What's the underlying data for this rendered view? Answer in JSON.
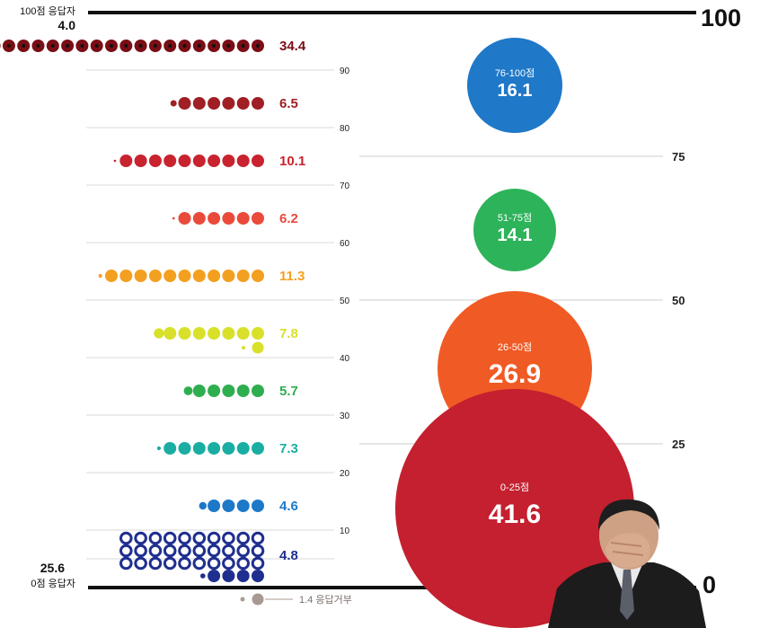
{
  "chart_data": {
    "type": "dot-bin-bubble",
    "bins": [
      {
        "value": 4.8,
        "label": "4.8",
        "color": "#1f2f8f"
      },
      {
        "value": 4.6,
        "label": "4.6",
        "color": "#1d78c8"
      },
      {
        "value": 7.3,
        "label": "7.3",
        "color": "#1aaea3"
      },
      {
        "value": 5.7,
        "label": "5.7",
        "color": "#2fae4f"
      },
      {
        "value": 7.8,
        "label": "7.8",
        "color": "#d8e02a"
      },
      {
        "value": 11.3,
        "label": "11.3",
        "color": "#f3a020"
      },
      {
        "value": 6.2,
        "label": "6.2",
        "color": "#ea4a3a"
      },
      {
        "value": 10.1,
        "label": "10.1",
        "color": "#c8232f"
      },
      {
        "value": 6.5,
        "label": "6.5",
        "color": "#9f1f25"
      },
      {
        "value": 34.4,
        "label": "34.4",
        "color": "#7a0e14"
      }
    ],
    "left_axis_ticks": [
      "10",
      "20",
      "30",
      "40",
      "50",
      "60",
      "70",
      "80",
      "90"
    ],
    "right_axis_ticks": [
      "25",
      "50",
      "75"
    ],
    "top_value": "100",
    "bottom_value": "0",
    "top_extreme": {
      "title": "100점 응답자",
      "value": "4.0"
    },
    "bottom_extreme": {
      "title": "0점 응답자",
      "value": "25.6"
    },
    "refusal": {
      "label": "1.4 응답거부",
      "value": 1.4
    },
    "groups": [
      {
        "range": "76-100점",
        "value": 16.1,
        "label": "16.1",
        "color": "#1f78c8"
      },
      {
        "range": "51-75점",
        "value": 14.1,
        "label": "14.1",
        "color": "#2db35a"
      },
      {
        "range": "26-50점",
        "value": 26.9,
        "label": "26.9",
        "color": "#f05a24"
      },
      {
        "range": "0-25점",
        "value": 41.6,
        "label": "41.6",
        "color": "#c4202f"
      }
    ]
  }
}
